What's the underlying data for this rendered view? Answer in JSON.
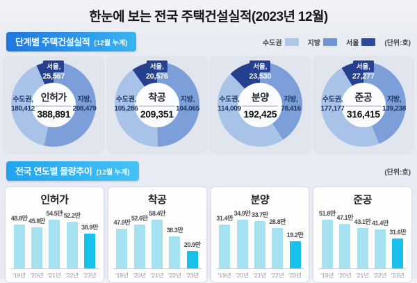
{
  "title": "한눈에 보는 전국 주택건설실적(2023년 12월)",
  "section1": {
    "badge": "단계별 주택건설실적",
    "badge_note": "(12월 누계)",
    "unit": "(단위:호)",
    "legend": [
      {
        "label": "수도권",
        "color": "#aec8ea"
      },
      {
        "label": "지방",
        "color": "#6f96d4"
      },
      {
        "label": "서울",
        "color": "#2a4a9e"
      }
    ]
  },
  "section2": {
    "badge": "전국 연도별 물량추이",
    "badge_note": "(12월 누계)",
    "unit": "(단위:호)"
  },
  "colors": {
    "donut_sudogwon": "#a9c3e8",
    "donut_jibang": "#7d9fd9",
    "donut_seoul": "#24408f",
    "bar_normal": "#a6e1f2",
    "bar_highlight": "#18c0ec"
  },
  "chart_data": [
    {
      "type": "pie",
      "subtype": "donut",
      "title": "인허가",
      "total": 388891,
      "total_display": "388,891",
      "segments": [
        {
          "label": "수도권,",
          "value": 180412,
          "display": "180,412"
        },
        {
          "label": "지방,",
          "value": 208479,
          "display": "208,479"
        },
        {
          "label": "서울,",
          "value": 25567,
          "display": "25,567"
        }
      ]
    },
    {
      "type": "pie",
      "subtype": "donut",
      "title": "착공",
      "total": 209351,
      "total_display": "209,351",
      "segments": [
        {
          "label": "수도권,",
          "value": 105286,
          "display": "105,286"
        },
        {
          "label": "지방,",
          "value": 104065,
          "display": "104,065"
        },
        {
          "label": "서울,",
          "value": 20576,
          "display": "20,576"
        }
      ]
    },
    {
      "type": "pie",
      "subtype": "donut",
      "title": "분양",
      "total": 192425,
      "total_display": "192,425",
      "segments": [
        {
          "label": "수도권,",
          "value": 114009,
          "display": "114,009"
        },
        {
          "label": "지방,",
          "value": 78416,
          "display": "78,416"
        },
        {
          "label": "서울,",
          "value": 23530,
          "display": "23,530"
        }
      ]
    },
    {
      "type": "pie",
      "subtype": "donut",
      "title": "준공",
      "total": 316415,
      "total_display": "316,415",
      "segments": [
        {
          "label": "수도권,",
          "value": 177177,
          "display": "177,177"
        },
        {
          "label": "지방,",
          "value": 139238,
          "display": "139,238"
        },
        {
          "label": "서울,",
          "value": 27277,
          "display": "27,277"
        }
      ]
    },
    {
      "type": "bar",
      "title": "인허가",
      "categories": [
        "'19년",
        "'20년",
        "'21년",
        "'22년",
        "'23년"
      ],
      "values": [
        48.8,
        45.8,
        54.5,
        52.2,
        38.9
      ],
      "labels": [
        "48.8만",
        "45.8만",
        "54.5만",
        "52.2만",
        "38.9만"
      ],
      "unit": "만",
      "highlight_index": 4
    },
    {
      "type": "bar",
      "title": "착공",
      "categories": [
        "'19년",
        "'20년",
        "'21년",
        "'22년",
        "'23년"
      ],
      "values": [
        47.9,
        52.6,
        58.4,
        38.3,
        20.9
      ],
      "labels": [
        "47.9만",
        "52.6만",
        "58.4만",
        "38.3만",
        "20.9만"
      ],
      "unit": "만",
      "highlight_index": 4
    },
    {
      "type": "bar",
      "title": "분양",
      "categories": [
        "'19년",
        "'20년",
        "'21년",
        "'22년",
        "'23년"
      ],
      "values": [
        31.4,
        34.9,
        33.7,
        28.8,
        19.2
      ],
      "labels": [
        "31.4만",
        "34.9만",
        "33.7만",
        "28.8만",
        "19.2만"
      ],
      "unit": "만",
      "highlight_index": 4
    },
    {
      "type": "bar",
      "title": "준공",
      "categories": [
        "'19년",
        "'20년",
        "'21년",
        "'22년",
        "'23년"
      ],
      "values": [
        51.8,
        47.1,
        43.1,
        41.4,
        31.6
      ],
      "labels": [
        "51.8만",
        "47.1만",
        "43.1만",
        "41.4만",
        "31.6만"
      ],
      "unit": "만",
      "highlight_index": 4
    }
  ]
}
